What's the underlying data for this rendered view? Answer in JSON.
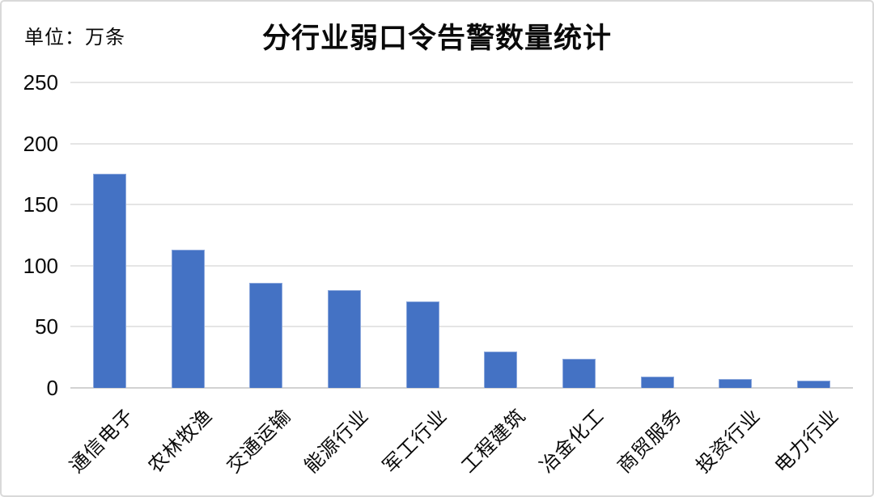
{
  "chart_data": {
    "type": "bar",
    "title": "分行业弱口令告警数量统计",
    "unit_label": "单位：万条",
    "unit": "万条",
    "categories": [
      "通信电子",
      "农林牧渔",
      "交通运输",
      "能源行业",
      "军工行业",
      "工程建筑",
      "冶金化工",
      "商贸服务",
      "投资行业",
      "电力行业"
    ],
    "values": [
      175,
      113,
      86,
      80,
      71,
      30,
      24,
      9,
      7,
      6
    ],
    "yticks": [
      0,
      50,
      100,
      150,
      200,
      250
    ],
    "ylim": [
      0,
      250
    ],
    "xlabel": "",
    "ylabel": "",
    "grid": true,
    "legend_position": "none",
    "bar_color": "#4472C4",
    "gridline_color": "#e5e5e5",
    "baseline_color": "#d2d2d2",
    "text_color": "#0a0a0a"
  }
}
